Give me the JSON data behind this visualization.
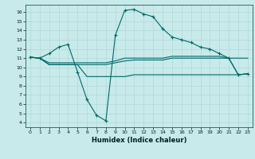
{
  "xlabel": "Humidex (Indice chaleur)",
  "background_color": "#c8eaea",
  "grid_color": "#b0d8d8",
  "line_color": "#006868",
  "xlim": [
    -0.5,
    23.5
  ],
  "ylim": [
    3.5,
    16.8
  ],
  "xticks": [
    0,
    1,
    2,
    3,
    4,
    5,
    6,
    7,
    8,
    9,
    10,
    11,
    12,
    13,
    14,
    15,
    16,
    17,
    18,
    19,
    20,
    21,
    22,
    23
  ],
  "yticks": [
    4,
    5,
    6,
    7,
    8,
    9,
    10,
    11,
    12,
    13,
    14,
    15,
    16
  ],
  "curve1_x": [
    0,
    1,
    2,
    3,
    4,
    5,
    6,
    7,
    8,
    9,
    10,
    11,
    12,
    13,
    14,
    15,
    16,
    17,
    18,
    19,
    20,
    21,
    22,
    23
  ],
  "curve1_y": [
    11.1,
    11.0,
    11.5,
    12.2,
    12.5,
    9.5,
    6.5,
    4.8,
    4.2,
    13.5,
    16.2,
    16.3,
    15.8,
    15.5,
    14.2,
    13.3,
    13.0,
    12.7,
    12.2,
    12.0,
    11.5,
    11.0,
    9.2,
    9.3
  ],
  "curve2_x": [
    0,
    1,
    2,
    3,
    4,
    5,
    6,
    7,
    8,
    9,
    10,
    11,
    12,
    13,
    14,
    15,
    16,
    17,
    18,
    19,
    20,
    21,
    22,
    23
  ],
  "curve2_y": [
    11.1,
    11.0,
    10.5,
    10.5,
    10.5,
    10.5,
    10.5,
    10.5,
    10.5,
    10.7,
    11.0,
    11.0,
    11.0,
    11.0,
    11.0,
    11.2,
    11.2,
    11.2,
    11.2,
    11.2,
    11.2,
    11.0,
    11.0,
    11.0
  ],
  "curve3_x": [
    0,
    1,
    2,
    3,
    4,
    5,
    6,
    7,
    8,
    9,
    10,
    11,
    12,
    13,
    14,
    15,
    16,
    17,
    18,
    19,
    20,
    21,
    22,
    23
  ],
  "curve3_y": [
    11.1,
    11.0,
    10.3,
    10.3,
    10.3,
    10.3,
    10.3,
    10.3,
    10.3,
    10.5,
    10.7,
    10.8,
    10.8,
    10.8,
    10.8,
    11.0,
    11.0,
    11.0,
    11.0,
    11.0,
    11.0,
    11.0,
    9.2,
    9.3
  ],
  "curve4_x": [
    0,
    1,
    2,
    3,
    4,
    5,
    6,
    7,
    8,
    9,
    10,
    11,
    12,
    13,
    14,
    15,
    16,
    17,
    18,
    19,
    20,
    21,
    22,
    23
  ],
  "curve4_y": [
    11.1,
    11.0,
    10.3,
    10.3,
    10.3,
    10.3,
    9.0,
    9.0,
    9.0,
    9.0,
    9.0,
    9.2,
    9.2,
    9.2,
    9.2,
    9.2,
    9.2,
    9.2,
    9.2,
    9.2,
    9.2,
    9.2,
    9.2,
    9.3
  ]
}
